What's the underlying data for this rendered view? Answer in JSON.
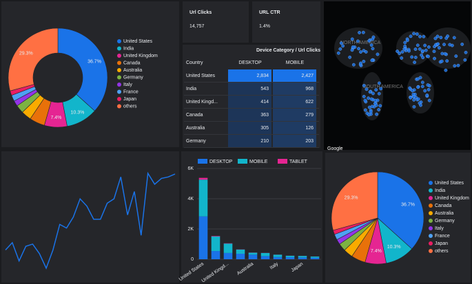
{
  "chart_data": [
    {
      "type": "donut",
      "categories": [
        "United States",
        "India",
        "United Kingdom",
        "Canada",
        "Australia",
        "Germany",
        "Italy",
        "France",
        "Japan",
        "others"
      ],
      "values": [
        36.7,
        10.3,
        7.4,
        5.0,
        3.3,
        2.7,
        1.8,
        2.0,
        1.5,
        29.3
      ],
      "value_labels": [
        "36.7%",
        "10.3%",
        "7.4%",
        null,
        null,
        null,
        null,
        null,
        null,
        "29.3%"
      ],
      "colors": [
        "#1a73e8",
        "#12b5cb",
        "#e52592",
        "#e8710a",
        "#f9ab00",
        "#7cb342",
        "#9334e6",
        "#4ea1f3",
        "#e91e63",
        "#ff7043"
      ]
    },
    {
      "type": "line",
      "values": [
        40,
        50,
        25,
        45,
        48,
        35,
        15,
        40,
        75,
        70,
        85,
        110,
        100,
        82,
        82,
        104,
        110,
        140,
        88,
        120,
        60,
        145,
        130,
        138,
        140,
        144
      ],
      "color": "#1a73e8"
    },
    {
      "type": "bar",
      "categories": [
        "United States",
        null,
        "United Kingd...",
        null,
        "Australia",
        null,
        "Italy",
        null,
        "Japan",
        null
      ],
      "series": [
        {
          "name": "DESKTOP",
          "color": "#1a73e8",
          "values": [
            2834,
            543,
            414,
            363,
            305,
            210,
            150,
            140,
            120,
            100
          ]
        },
        {
          "name": "MOBILE",
          "color": "#12b5cb",
          "values": [
            2427,
            968,
            622,
            279,
            126,
            203,
            150,
            90,
            100,
            80
          ]
        },
        {
          "name": "TABLET",
          "color": "#e52592",
          "values": [
            120,
            30,
            20,
            10,
            10,
            8,
            5,
            5,
            5,
            5
          ]
        }
      ],
      "ylim": [
        0,
        6000
      ],
      "yticks": [
        {
          "value": 0,
          "label": "0"
        },
        {
          "value": 2000,
          "label": "2K"
        },
        {
          "value": 4000,
          "label": "4K"
        },
        {
          "value": 6000,
          "label": "6K"
        }
      ]
    },
    {
      "type": "pie",
      "categories": [
        "United States",
        "India",
        "United Kingdom",
        "Canada",
        "Australia",
        "Germany",
        "Italy",
        "France",
        "Japan",
        "others"
      ],
      "values": [
        36.7,
        10.3,
        7.4,
        5.0,
        3.3,
        2.7,
        1.8,
        2.0,
        1.5,
        29.3
      ],
      "value_labels": [
        "36.7%",
        "10.3%",
        "7.4%",
        null,
        null,
        null,
        null,
        null,
        null,
        "29.3%"
      ],
      "colors": [
        "#1a73e8",
        "#12b5cb",
        "#e52592",
        "#e8710a",
        "#f9ab00",
        "#7cb342",
        "#9334e6",
        "#4ea1f3",
        "#e91e63",
        "#ff7043"
      ]
    }
  ],
  "scorecards": [
    {
      "label": "Url Clicks",
      "value": "14,757"
    },
    {
      "label": "URL CTR",
      "value": "1.4%"
    }
  ],
  "table": {
    "title": "Device Category / Url Clicks",
    "columns": [
      "Country",
      "DESKTOP",
      "MOBILE"
    ],
    "rows": [
      [
        "United States",
        "2,834",
        "2,427"
      ],
      [
        "India",
        "543",
        "968"
      ],
      [
        "United Kingd...",
        "414",
        "622"
      ],
      [
        "Canada",
        "363",
        "279"
      ],
      [
        "Australia",
        "305",
        "126"
      ],
      [
        "Germany",
        "210",
        "203"
      ]
    ]
  },
  "map": {
    "logo": "Google",
    "labels": [
      "NORTH AMERICA",
      "SOUTH AMERICA"
    ]
  }
}
